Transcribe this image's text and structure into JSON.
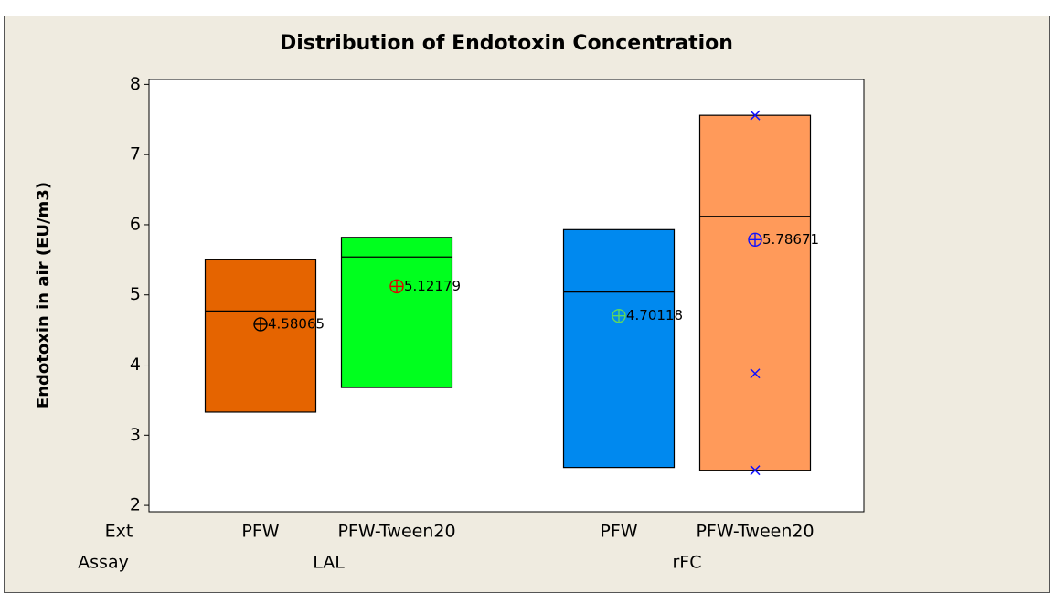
{
  "chart_data": {
    "type": "box",
    "title": "Distribution of Endotoxin Concentration",
    "ylabel": "Endotoxin in air (EU/m3)",
    "ylim": [
      1.91,
      8.07
    ],
    "yticks": [
      2,
      3,
      4,
      5,
      6,
      7,
      8
    ],
    "row_labels": [
      "Ext",
      "Assay"
    ],
    "groups": [
      {
        "name": "LAL",
        "boxes": [
          {
            "category": "PFW",
            "q1": 3.33,
            "median": 4.77,
            "q3": 5.5,
            "mean": 4.58065,
            "color": "#e56400",
            "mean_color": "#000000"
          },
          {
            "category": "PFW-Tween20",
            "q1": 3.68,
            "median": 5.54,
            "q3": 5.82,
            "mean": 5.12179,
            "color": "#00ff1e",
            "mean_color": "#e00000"
          }
        ]
      },
      {
        "name": "rFC",
        "boxes": [
          {
            "category": "PFW",
            "q1": 2.54,
            "median": 5.04,
            "q3": 5.93,
            "mean": 4.70118,
            "color": "#0089ef",
            "mean_color": "#5fd85f"
          },
          {
            "category": "PFW-Tween20",
            "q1": 2.5,
            "median": 6.12,
            "q3": 7.56,
            "mean": 5.78671,
            "color": "#ff9a5a",
            "mean_color": "#1010ff",
            "points": [
              2.5,
              3.88,
              7.56
            ],
            "point_color": "#1010ff"
          }
        ]
      }
    ]
  }
}
